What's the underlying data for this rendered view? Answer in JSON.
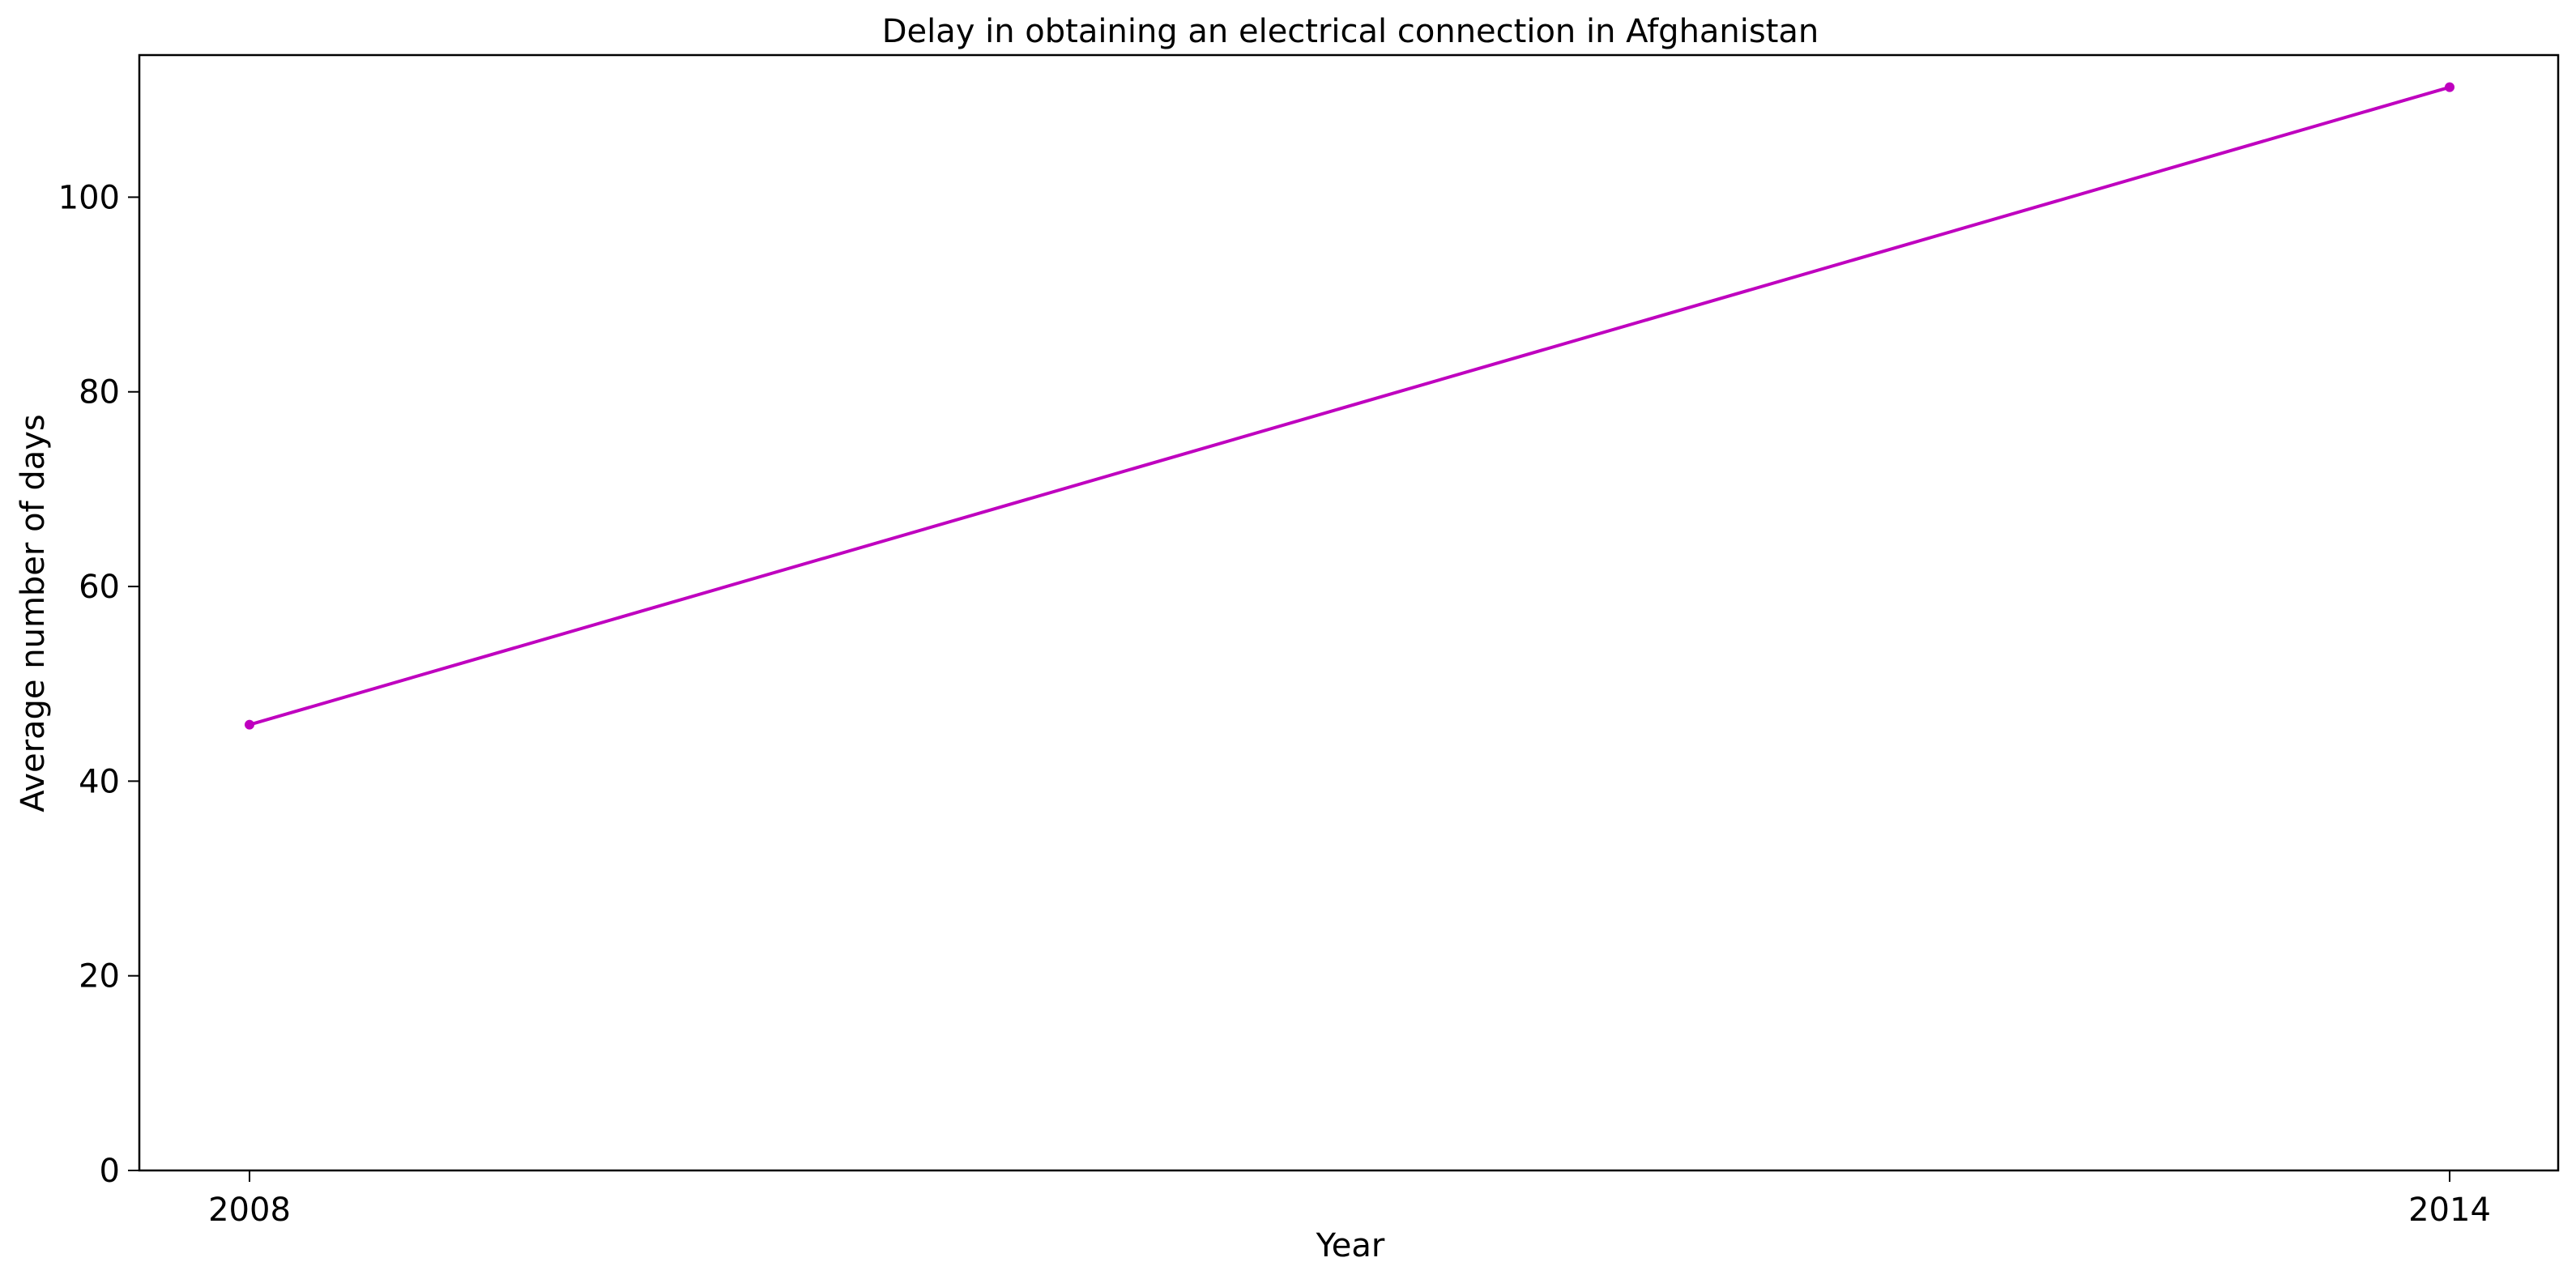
{
  "chart_data": {
    "type": "line",
    "title": "Delay in obtaining an electrical connection in Afghanistan",
    "xlabel": "Year",
    "ylabel": "Average number of days",
    "x": [
      2008,
      2014
    ],
    "xticks": [
      "2008",
      "2014"
    ],
    "yticks": [
      0,
      20,
      40,
      60,
      80,
      100
    ],
    "ylim": [
      0,
      114.6
    ],
    "grid": false,
    "series": [
      {
        "values": [
          45.8,
          111.3
        ],
        "color": "#bf00bf",
        "marker": "circle"
      }
    ]
  }
}
